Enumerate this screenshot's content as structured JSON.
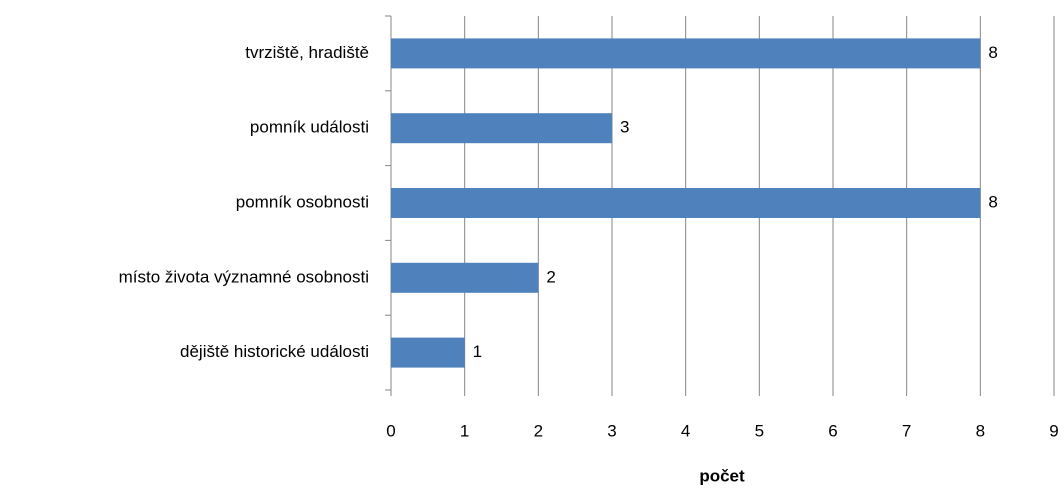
{
  "chart_data": {
    "type": "bar",
    "orientation": "horizontal",
    "categories": [
      "tvrziště, hradiště",
      "pomník události",
      "pomník osobnosti",
      "místo života významné osobnosti",
      "dějiště historické události"
    ],
    "values": [
      8,
      3,
      8,
      2,
      1
    ],
    "color": "#4f81bd",
    "x_label": "počet",
    "xlim": [
      0,
      9
    ],
    "xticks": [
      0,
      1,
      2,
      3,
      4,
      5,
      6,
      7,
      8,
      9
    ],
    "grid": true
  }
}
